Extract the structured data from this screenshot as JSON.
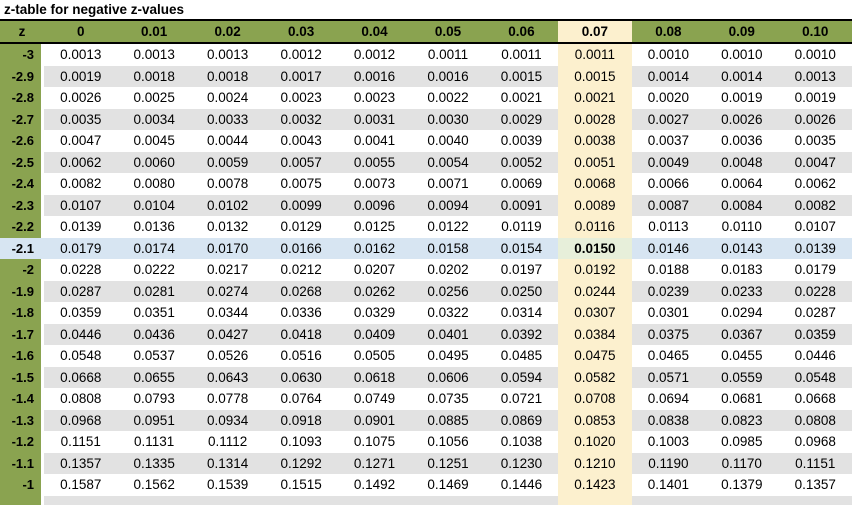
{
  "title": "z-table for negative z-values",
  "columns": [
    "z",
    "0",
    "0.01",
    "0.02",
    "0.03",
    "0.04",
    "0.05",
    "0.06",
    "0.07",
    "0.08",
    "0.09",
    "0.10"
  ],
  "rows": [
    {
      "z": "-3",
      "values": [
        "0.0013",
        "0.0013",
        "0.0013",
        "0.0012",
        "0.0012",
        "0.0011",
        "0.0011",
        "0.0011",
        "0.0010",
        "0.0010",
        "0.0010"
      ]
    },
    {
      "z": "-2.9",
      "values": [
        "0.0019",
        "0.0018",
        "0.0018",
        "0.0017",
        "0.0016",
        "0.0016",
        "0.0015",
        "0.0015",
        "0.0014",
        "0.0014",
        "0.0013"
      ]
    },
    {
      "z": "-2.8",
      "values": [
        "0.0026",
        "0.0025",
        "0.0024",
        "0.0023",
        "0.0023",
        "0.0022",
        "0.0021",
        "0.0021",
        "0.0020",
        "0.0019",
        "0.0019"
      ]
    },
    {
      "z": "-2.7",
      "values": [
        "0.0035",
        "0.0034",
        "0.0033",
        "0.0032",
        "0.0031",
        "0.0030",
        "0.0029",
        "0.0028",
        "0.0027",
        "0.0026",
        "0.0026"
      ]
    },
    {
      "z": "-2.6",
      "values": [
        "0.0047",
        "0.0045",
        "0.0044",
        "0.0043",
        "0.0041",
        "0.0040",
        "0.0039",
        "0.0038",
        "0.0037",
        "0.0036",
        "0.0035"
      ]
    },
    {
      "z": "-2.5",
      "values": [
        "0.0062",
        "0.0060",
        "0.0059",
        "0.0057",
        "0.0055",
        "0.0054",
        "0.0052",
        "0.0051",
        "0.0049",
        "0.0048",
        "0.0047"
      ]
    },
    {
      "z": "-2.4",
      "values": [
        "0.0082",
        "0.0080",
        "0.0078",
        "0.0075",
        "0.0073",
        "0.0071",
        "0.0069",
        "0.0068",
        "0.0066",
        "0.0064",
        "0.0062"
      ]
    },
    {
      "z": "-2.3",
      "values": [
        "0.0107",
        "0.0104",
        "0.0102",
        "0.0099",
        "0.0096",
        "0.0094",
        "0.0091",
        "0.0089",
        "0.0087",
        "0.0084",
        "0.0082"
      ]
    },
    {
      "z": "-2.2",
      "values": [
        "0.0139",
        "0.0136",
        "0.0132",
        "0.0129",
        "0.0125",
        "0.0122",
        "0.0119",
        "0.0116",
        "0.0113",
        "0.0110",
        "0.0107"
      ]
    },
    {
      "z": "-2.1",
      "values": [
        "0.0179",
        "0.0174",
        "0.0170",
        "0.0166",
        "0.0162",
        "0.0158",
        "0.0154",
        "0.0150",
        "0.0146",
        "0.0143",
        "0.0139"
      ]
    },
    {
      "z": "-2",
      "values": [
        "0.0228",
        "0.0222",
        "0.0217",
        "0.0212",
        "0.0207",
        "0.0202",
        "0.0197",
        "0.0192",
        "0.0188",
        "0.0183",
        "0.0179"
      ]
    },
    {
      "z": "-1.9",
      "values": [
        "0.0287",
        "0.0281",
        "0.0274",
        "0.0268",
        "0.0262",
        "0.0256",
        "0.0250",
        "0.0244",
        "0.0239",
        "0.0233",
        "0.0228"
      ]
    },
    {
      "z": "-1.8",
      "values": [
        "0.0359",
        "0.0351",
        "0.0344",
        "0.0336",
        "0.0329",
        "0.0322",
        "0.0314",
        "0.0307",
        "0.0301",
        "0.0294",
        "0.0287"
      ]
    },
    {
      "z": "-1.7",
      "values": [
        "0.0446",
        "0.0436",
        "0.0427",
        "0.0418",
        "0.0409",
        "0.0401",
        "0.0392",
        "0.0384",
        "0.0375",
        "0.0367",
        "0.0359"
      ]
    },
    {
      "z": "-1.6",
      "values": [
        "0.0548",
        "0.0537",
        "0.0526",
        "0.0516",
        "0.0505",
        "0.0495",
        "0.0485",
        "0.0475",
        "0.0465",
        "0.0455",
        "0.0446"
      ]
    },
    {
      "z": "-1.5",
      "values": [
        "0.0668",
        "0.0655",
        "0.0643",
        "0.0630",
        "0.0618",
        "0.0606",
        "0.0594",
        "0.0582",
        "0.0571",
        "0.0559",
        "0.0548"
      ]
    },
    {
      "z": "-1.4",
      "values": [
        "0.0808",
        "0.0793",
        "0.0778",
        "0.0764",
        "0.0749",
        "0.0735",
        "0.0721",
        "0.0708",
        "0.0694",
        "0.0681",
        "0.0668"
      ]
    },
    {
      "z": "-1.3",
      "values": [
        "0.0968",
        "0.0951",
        "0.0934",
        "0.0918",
        "0.0901",
        "0.0885",
        "0.0869",
        "0.0853",
        "0.0838",
        "0.0823",
        "0.0808"
      ]
    },
    {
      "z": "-1.2",
      "values": [
        "0.1151",
        "0.1131",
        "0.1112",
        "0.1093",
        "0.1075",
        "0.1056",
        "0.1038",
        "0.1020",
        "0.1003",
        "0.0985",
        "0.0968"
      ]
    },
    {
      "z": "-1.1",
      "values": [
        "0.1357",
        "0.1335",
        "0.1314",
        "0.1292",
        "0.1271",
        "0.1251",
        "0.1230",
        "0.1210",
        "0.1190",
        "0.1170",
        "0.1151"
      ]
    },
    {
      "z": "-1",
      "values": [
        "0.1587",
        "0.1562",
        "0.1539",
        "0.1515",
        "0.1492",
        "0.1469",
        "0.1446",
        "0.1423",
        "0.1401",
        "0.1379",
        "0.1357"
      ]
    }
  ],
  "highlight": {
    "column_label": "0.07",
    "value_index": 7,
    "row_label": "-2.1",
    "row_index": 9,
    "intersection_value": "0.0150",
    "colors": {
      "header_green": "#8aa350",
      "row_stripe_gray": "#e2e2e2",
      "column_cream": "#fcf0ce",
      "row_blue": "#d7e5f2",
      "intersection_green": "#e7efda"
    }
  }
}
